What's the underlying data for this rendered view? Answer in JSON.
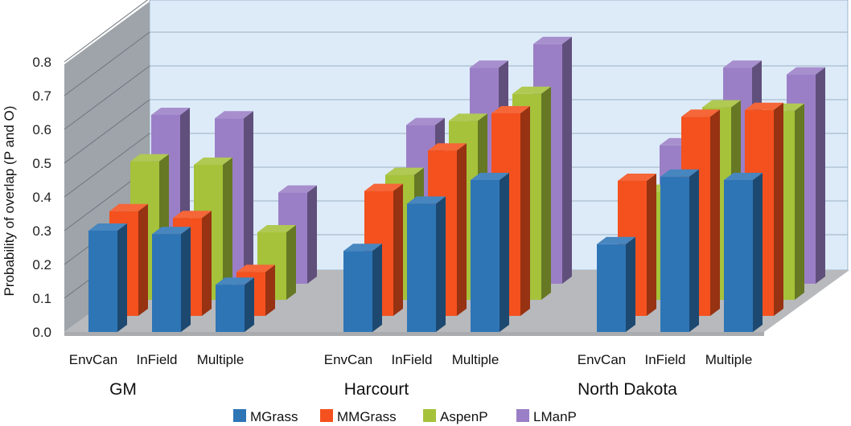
{
  "chart_data": {
    "type": "bar",
    "title": "",
    "ylabel": "Probability of overlap (P and O)",
    "xlabel": "",
    "ylim": [
      0,
      0.8
    ],
    "yticks": [
      "0.0",
      "0.1",
      "0.2",
      "0.3",
      "0.4",
      "0.5",
      "0.6",
      "0.7",
      "0.8"
    ],
    "categories": [
      "EnvCan",
      "InField",
      "Multiple"
    ],
    "groups": [
      "GM",
      "Harcourt",
      "North Dakota"
    ],
    "legend_position": "bottom",
    "grid": true,
    "series": [
      {
        "name": "MGrass",
        "color": "#2E75B6",
        "values": [
          [
            0.3,
            0.29,
            0.14
          ],
          [
            0.24,
            0.38,
            0.45
          ],
          [
            0.26,
            0.46,
            0.45
          ]
        ]
      },
      {
        "name": "MMGrass",
        "color": "#F4511E",
        "values": [
          [
            0.31,
            0.29,
            0.13
          ],
          [
            0.37,
            0.49,
            0.6
          ],
          [
            0.4,
            0.59,
            0.61
          ]
        ]
      },
      {
        "name": "AspenP",
        "color": "#A5C23A",
        "values": [
          [
            0.41,
            0.4,
            0.2
          ],
          [
            0.37,
            0.53,
            0.61
          ],
          [
            0.32,
            0.57,
            0.56
          ]
        ]
      },
      {
        "name": "LManP",
        "color": "#9B7FC6",
        "values": [
          [
            0.5,
            0.49,
            0.27
          ],
          [
            0.47,
            0.64,
            0.71
          ],
          [
            0.41,
            0.64,
            0.62
          ]
        ]
      }
    ]
  }
}
